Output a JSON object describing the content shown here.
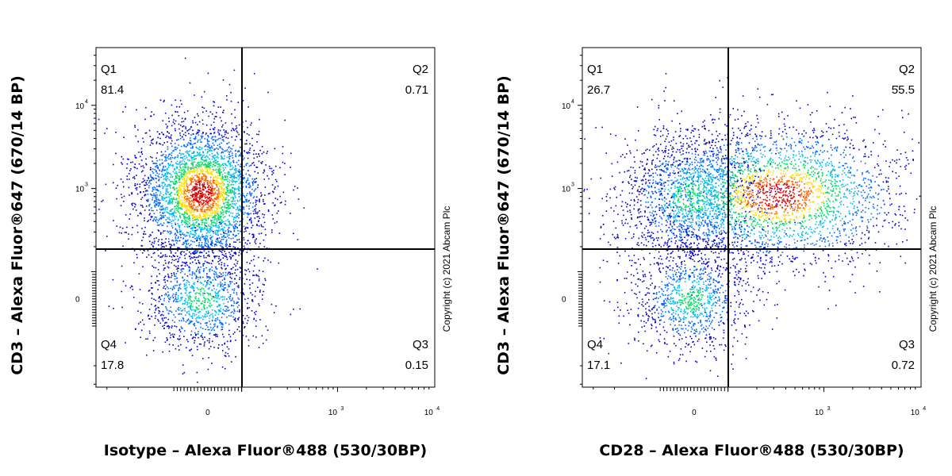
{
  "chart_data": [
    {
      "type": "scatter",
      "subtype": "flow-cytometry-density-dot-plot",
      "xlabel": "Isotype – Alexa Fluor®488 (530/30BP)",
      "ylabel": "CD3 – Alexa Fluor®647 (670/14 BP)",
      "x_scale": "biexponential",
      "y_scale": "biexponential",
      "x_ticks": [
        {
          "base": "0",
          "exp": ""
        },
        {
          "base": "10",
          "exp": "3"
        },
        {
          "base": "10",
          "exp": "4"
        }
      ],
      "y_ticks": [
        {
          "base": "0",
          "exp": ""
        },
        {
          "base": "10",
          "exp": "3"
        },
        {
          "base": "10",
          "exp": "4"
        }
      ],
      "quadrants": [
        {
          "name": "Q1",
          "value": "81.4",
          "pos": "top-left"
        },
        {
          "name": "Q2",
          "value": "0.71",
          "pos": "top-right"
        },
        {
          "name": "Q3",
          "value": "0.15",
          "pos": "bottom-right"
        },
        {
          "name": "Q4",
          "value": "17.8",
          "pos": "bottom-left"
        }
      ],
      "populations": [
        {
          "cx": -20,
          "cy": 900,
          "n": 3600,
          "sx": 95,
          "sy": 560,
          "peak": true
        },
        {
          "cx": -20,
          "cy": 0,
          "n": 1100,
          "sx": 85,
          "sy": 0.9,
          "peak": false
        }
      ],
      "copyright": "Copyright (c) 2021 Abcam Plc",
      "palette": [
        "#0000cc",
        "#0066ff",
        "#00bbee",
        "#00dd66",
        "#ffdd00",
        "#ff6600",
        "#dd0000"
      ]
    },
    {
      "type": "scatter",
      "subtype": "flow-cytometry-density-dot-plot",
      "xlabel": "CD28 – Alexa Fluor®488 (530/30BP)",
      "ylabel": "CD3 – Alexa Fluor®647 (670/14 BP)",
      "x_scale": "biexponential",
      "y_scale": "biexponential",
      "x_ticks": [
        {
          "base": "0",
          "exp": ""
        },
        {
          "base": "10",
          "exp": "3"
        },
        {
          "base": "10",
          "exp": "4"
        }
      ],
      "y_ticks": [
        {
          "base": "0",
          "exp": ""
        },
        {
          "base": "10",
          "exp": "3"
        },
        {
          "base": "10",
          "exp": "4"
        }
      ],
      "quadrants": [
        {
          "name": "Q1",
          "value": "26.7",
          "pos": "top-left"
        },
        {
          "name": "Q2",
          "value": "55.5",
          "pos": "top-right"
        },
        {
          "name": "Q3",
          "value": "0.72",
          "pos": "bottom-right"
        },
        {
          "name": "Q4",
          "value": "17.1",
          "pos": "bottom-left"
        }
      ],
      "populations": [
        {
          "cx": -10,
          "cy": 800,
          "n": 1500,
          "sx": 120,
          "sy": 520,
          "peak": false
        },
        {
          "cx": 330,
          "cy": 850,
          "n": 2800,
          "sx": 260,
          "sy": 600,
          "peak": true
        },
        {
          "cx": -10,
          "cy": 0,
          "n": 1000,
          "sx": 80,
          "sy": 0.9,
          "peak": false
        }
      ],
      "copyright": "Copyright (c) 2021 Abcam Plc",
      "palette": [
        "#0000cc",
        "#0066ff",
        "#00bbee",
        "#00dd66",
        "#ffdd00",
        "#ff6600",
        "#dd0000"
      ]
    }
  ]
}
